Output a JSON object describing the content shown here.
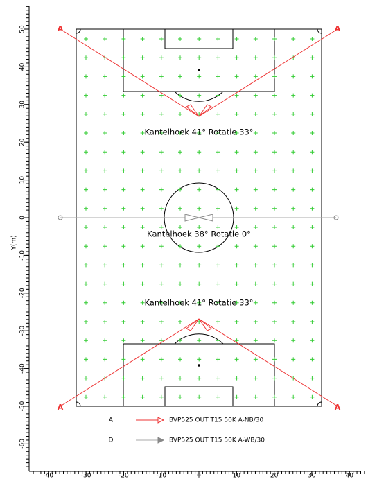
{
  "axes": {
    "ylabel": "Y(m)",
    "xticks": [
      -40,
      -30,
      -20,
      -10,
      0,
      10,
      20,
      30,
      40
    ],
    "yticks": [
      -60,
      -50,
      -40,
      -30,
      -20,
      -10,
      0,
      10,
      20,
      30,
      40,
      50
    ]
  },
  "annotations": [
    "Kantelhoek 41°  Rotatie 33°",
    "Kantelhoek 38°  Rotatie 0°",
    "Kantelhoek 41°  Rotatie 33°"
  ],
  "lamps": [
    "A",
    "A",
    "A",
    "A"
  ],
  "legend": [
    {
      "symbol": "A",
      "label": "BVP525 OUT T15 50K A-NB/30"
    },
    {
      "symbol": "D",
      "label": "BVP525 OUT T15 50K A-WB/30"
    }
  ]
}
